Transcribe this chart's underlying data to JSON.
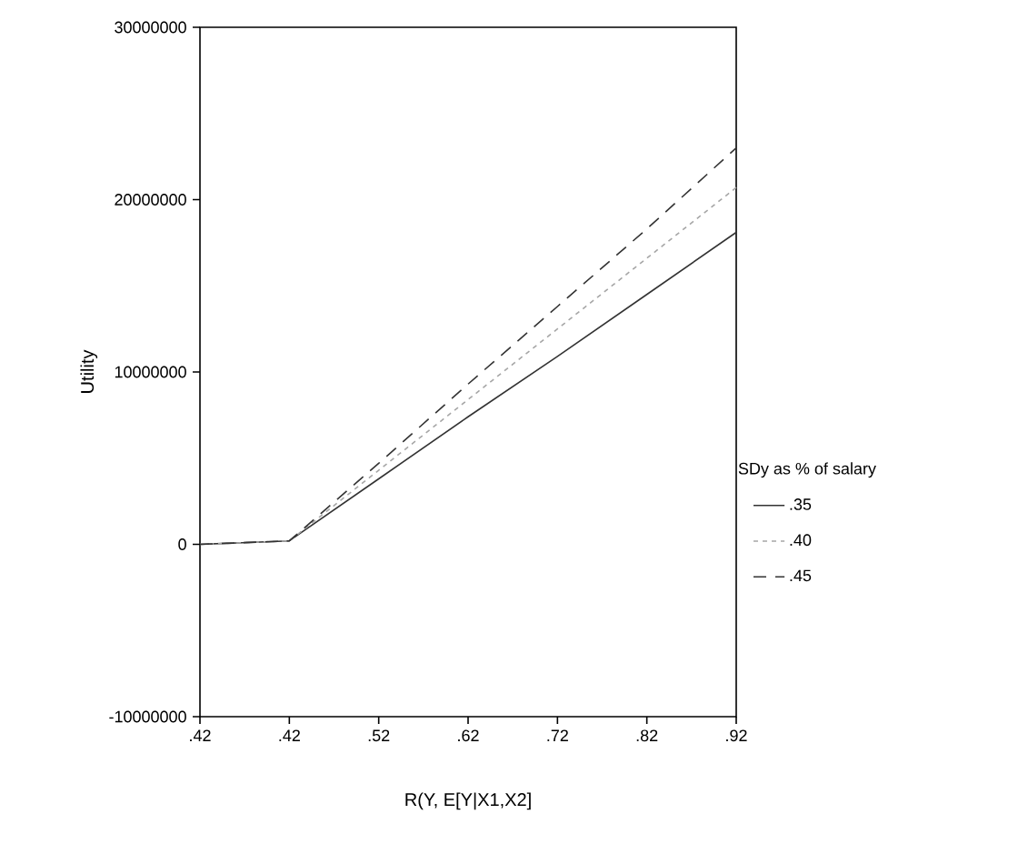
{
  "chart_data": {
    "type": "line",
    "xlabel": "R(Y, E[Y|X1,X2]",
    "ylabel": "Utility",
    "legend_title": "SDy as % of salary",
    "legend": "right",
    "grid": false,
    "categories": [
      ".42",
      ".42",
      ".52",
      ".62",
      ".72",
      ".82",
      ".92"
    ],
    "ylim": [
      -10000000,
      30000000
    ],
    "yticks": [
      -10000000,
      0,
      10000000,
      20000000,
      30000000
    ],
    "series": [
      {
        "name": ".35",
        "color": "#333333",
        "line_style": "solid",
        "values": [
          0,
          200000,
          3800000,
          7400000,
          10900000,
          14500000,
          18100000
        ]
      },
      {
        "name": ".40",
        "color": "#a6a6a6",
        "line_style": "dotted",
        "values": [
          0,
          200000,
          4300000,
          8400000,
          12500000,
          16600000,
          20700000
        ]
      },
      {
        "name": ".45",
        "color": "#333333",
        "line_style": "dashed",
        "values": [
          0,
          200000,
          4700000,
          9300000,
          13800000,
          18300000,
          23000000
        ]
      }
    ]
  }
}
